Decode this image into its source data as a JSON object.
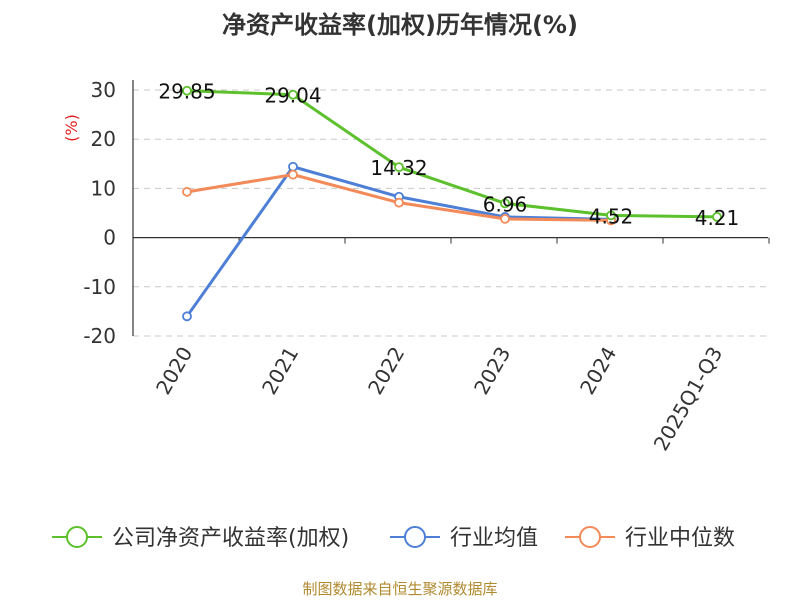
{
  "chart_data": {
    "type": "line",
    "title": "净资产收益率(加权)历年情况(%)",
    "ylabel": "(%)",
    "xlabel": "",
    "categories": [
      "2020",
      "2021",
      "2022",
      "2023",
      "2024",
      "2025Q1-Q3"
    ],
    "ylim": [
      -20,
      30
    ],
    "yticks": [
      30,
      20,
      10,
      0,
      -10,
      -20
    ],
    "grid": true,
    "legend_position": "bottom",
    "series": [
      {
        "name": "公司净资产收益率(加权)",
        "color": "#5cc12c",
        "values": [
          29.85,
          29.04,
          14.32,
          6.96,
          4.52,
          4.21
        ],
        "labels": [
          "29.85",
          "29.04",
          "14.32",
          "6.96",
          "4.52",
          "4.21"
        ]
      },
      {
        "name": "行业均值",
        "color": "#4d7fd6",
        "values": [
          -16.0,
          14.4,
          8.3,
          4.2,
          3.7,
          null
        ]
      },
      {
        "name": "行业中位数",
        "color": "#f28a5a",
        "values": [
          9.3,
          12.8,
          7.1,
          3.8,
          3.5,
          null
        ]
      }
    ],
    "source": "制图数据来自恒生聚源数据库"
  }
}
